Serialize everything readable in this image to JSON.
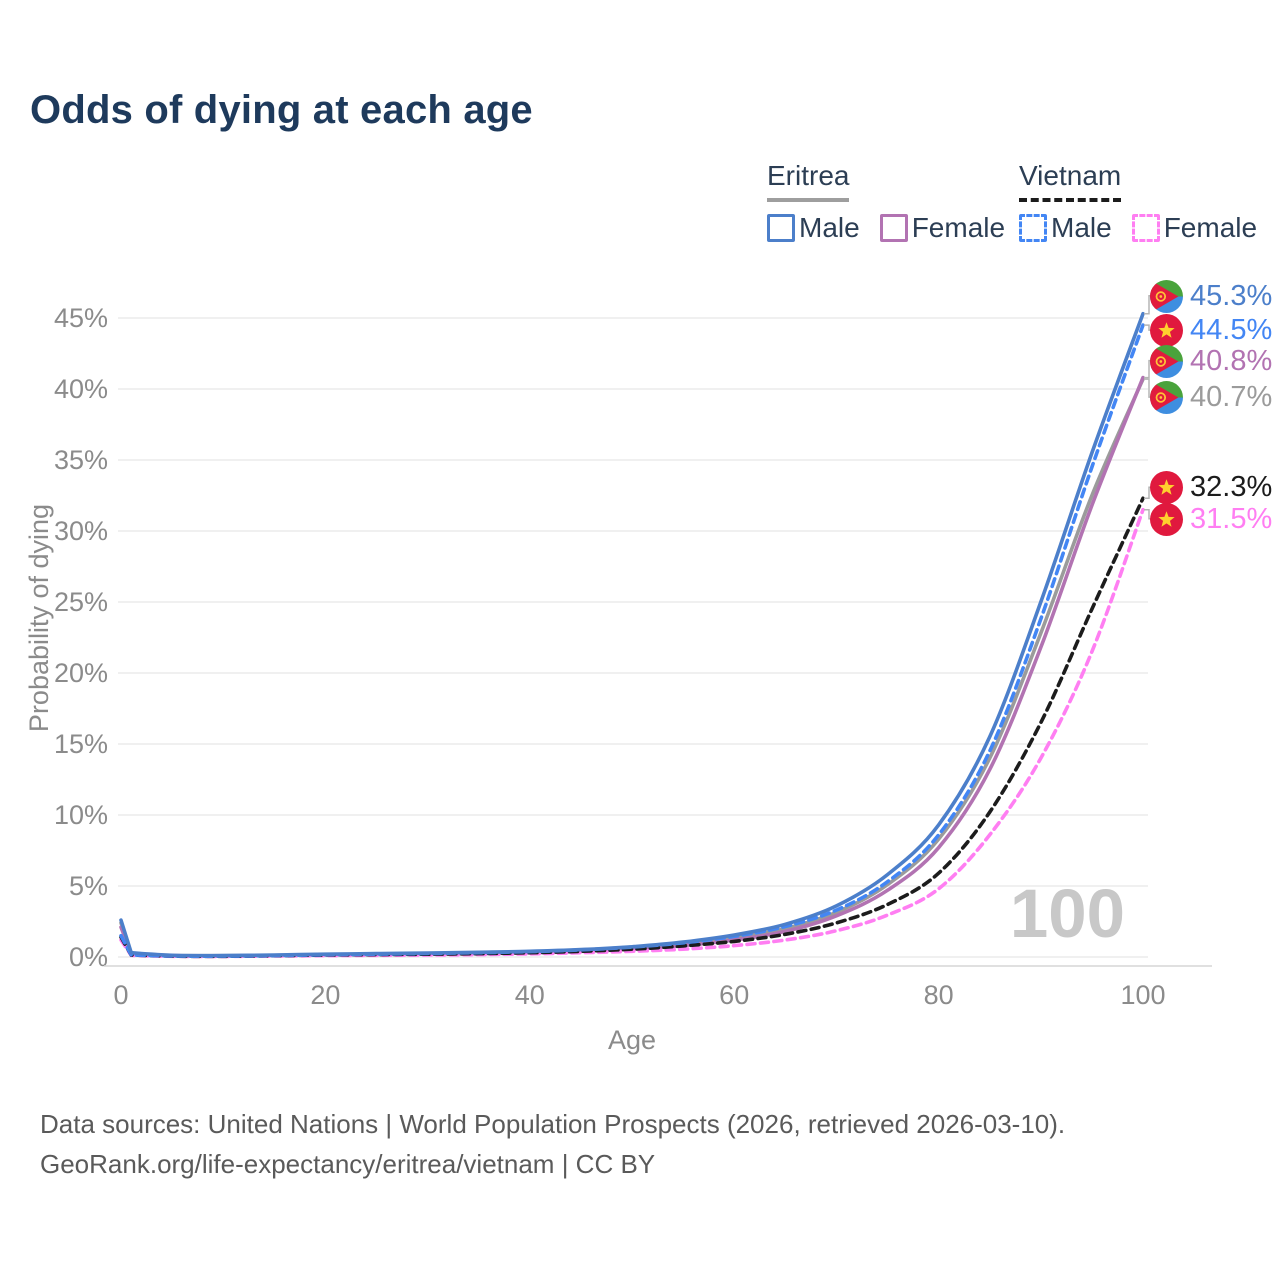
{
  "title": "Odds of dying at each age",
  "watermark_age": "100",
  "legend": {
    "groups": [
      {
        "country": "Eritrea",
        "line_style": "solid",
        "items": [
          {
            "label": "Male"
          },
          {
            "label": "Female"
          }
        ]
      },
      {
        "country": "Vietnam",
        "line_style": "dashed",
        "items": [
          {
            "label": "Male"
          },
          {
            "label": "Female"
          }
        ]
      }
    ]
  },
  "axes": {
    "x_title": "Age",
    "y_title": "Probability of dying"
  },
  "footer": {
    "line1": "Data sources: United Nations | World Population Prospects (2026, retrieved 2026-03-10).",
    "line2": "GeoRank.org/life-expectancy/eritrea/vietnam | CC BY"
  },
  "chart_data": {
    "type": "line",
    "title": "Odds of dying at each age",
    "xlabel": "Age",
    "ylabel": "Probability of dying",
    "xlim": [
      0,
      100
    ],
    "ylim_percent": [
      0,
      47
    ],
    "x_ticks": [
      0,
      20,
      40,
      60,
      80,
      100
    ],
    "y_ticks_percent": [
      0,
      5,
      10,
      15,
      20,
      25,
      30,
      35,
      40,
      45
    ],
    "grid": "horizontal",
    "legend_position": "top-right",
    "ages": [
      0,
      1,
      5,
      10,
      15,
      20,
      25,
      30,
      35,
      40,
      45,
      50,
      55,
      60,
      65,
      70,
      75,
      80,
      85,
      90,
      95,
      100
    ],
    "series": [
      {
        "name": "Eritrea Male",
        "country": "Eritrea",
        "sex": "Male",
        "style": "solid",
        "color": "#4c7fca",
        "flag": "eritrea",
        "end_label": "45.3%",
        "end_value_percent": 45.3,
        "values_percent": [
          2.6,
          0.3,
          0.12,
          0.1,
          0.14,
          0.2,
          0.24,
          0.28,
          0.33,
          0.4,
          0.52,
          0.72,
          1.05,
          1.55,
          2.3,
          3.6,
          5.8,
          9.3,
          15.5,
          25.0,
          35.5,
          45.3
        ]
      },
      {
        "name": "Vietnam Male",
        "country": "Vietnam",
        "sex": "Male",
        "style": "dashed",
        "color": "#4386f4",
        "flag": "vietnam",
        "end_label": "44.5%",
        "end_value_percent": 44.5,
        "values_percent": [
          1.5,
          0.15,
          0.07,
          0.06,
          0.1,
          0.16,
          0.2,
          0.25,
          0.3,
          0.38,
          0.5,
          0.7,
          1.0,
          1.45,
          2.15,
          3.3,
          5.3,
          8.6,
          14.5,
          23.8,
          34.5,
          44.5
        ]
      },
      {
        "name": "Eritrea Female",
        "country": "Eritrea",
        "sex": "Female",
        "style": "solid",
        "color": "#b273b2",
        "flag": "eritrea",
        "end_label": "40.8%",
        "end_value_percent": 40.8,
        "values_percent": [
          2.1,
          0.25,
          0.1,
          0.08,
          0.11,
          0.15,
          0.18,
          0.2,
          0.24,
          0.3,
          0.4,
          0.55,
          0.8,
          1.2,
          1.8,
          2.9,
          4.7,
          7.7,
          13.2,
          21.8,
          31.8,
          40.8
        ]
      },
      {
        "name": "Eritrea",
        "country": "Eritrea",
        "sex": "Both",
        "style": "solid",
        "color": "#9b9b9b",
        "flag": "eritrea",
        "end_label": "40.7%",
        "end_value_percent": 40.7,
        "values_percent": [
          2.4,
          0.27,
          0.11,
          0.09,
          0.12,
          0.17,
          0.2,
          0.24,
          0.28,
          0.34,
          0.45,
          0.62,
          0.9,
          1.35,
          2.0,
          3.15,
          5.1,
          8.3,
          14.0,
          22.8,
          32.5,
          40.7
        ]
      },
      {
        "name": "Vietnam",
        "country": "Vietnam",
        "sex": "Both",
        "style": "dashed",
        "color": "#1c1c1c",
        "flag": "vietnam",
        "end_label": "32.3%",
        "end_value_percent": 32.3,
        "values_percent": [
          1.4,
          0.14,
          0.06,
          0.05,
          0.09,
          0.14,
          0.17,
          0.2,
          0.24,
          0.3,
          0.4,
          0.55,
          0.78,
          1.1,
          1.6,
          2.4,
          3.7,
          5.9,
          10.2,
          16.5,
          24.5,
          32.3
        ]
      },
      {
        "name": "Vietnam Female",
        "country": "Vietnam",
        "sex": "Female",
        "style": "dashed",
        "color": "#ff7ef2",
        "flag": "vietnam",
        "end_label": "31.5%",
        "end_value_percent": 31.5,
        "values_percent": [
          1.2,
          0.12,
          0.05,
          0.04,
          0.07,
          0.1,
          0.12,
          0.14,
          0.17,
          0.22,
          0.3,
          0.4,
          0.55,
          0.8,
          1.2,
          1.85,
          2.95,
          4.8,
          8.6,
          14.0,
          21.5,
          31.5
        ]
      }
    ]
  }
}
